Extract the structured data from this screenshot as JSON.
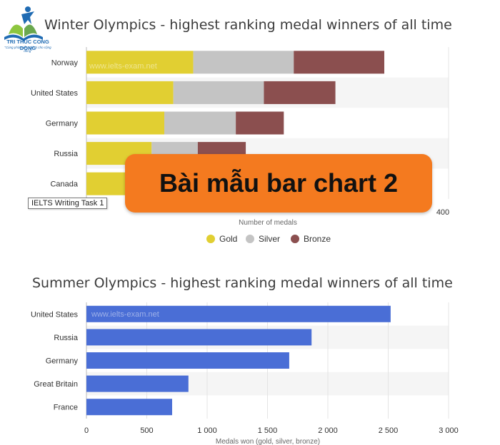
{
  "logo": {
    "name": "TRI THUC CONG DONG",
    "slogan": "\"Cùng phát triển, giá trị cho cộng đồng\""
  },
  "banner": {
    "text": "Bài mẫu bar chart 2"
  },
  "tooltip": {
    "text": "IELTS Writing Task 1"
  },
  "chart_data": [
    {
      "type": "bar",
      "orientation": "horizontal",
      "stacked": true,
      "title": "Winter Olympics - highest ranking medal winners of all time",
      "categories": [
        "Norway",
        "United States",
        "Germany",
        "Russia",
        "Canada"
      ],
      "series": [
        {
          "name": "Gold",
          "color": "#e1cf32",
          "values": [
            118,
            96,
            86,
            72,
            62
          ]
        },
        {
          "name": "Silver",
          "color": "#c4c4c4",
          "values": [
            111,
            100,
            79,
            51,
            55
          ]
        },
        {
          "name": "Bronze",
          "color": "#8b4f4f",
          "values": [
            100,
            79,
            53,
            53,
            53
          ]
        }
      ],
      "xlabel": "Number of medals",
      "xlim": [
        0,
        400
      ],
      "xticks_visible": [
        400
      ],
      "watermark": "www.ielts-exam.net",
      "legend": "bottom",
      "grid": true
    },
    {
      "type": "bar",
      "orientation": "horizontal",
      "title": "Summer Olympics - highest ranking medal winners of all time",
      "categories": [
        "United States",
        "Russia",
        "Germany",
        "Great Britain",
        "France"
      ],
      "series": [
        {
          "color": "#4a6ed6",
          "values": [
            2520,
            1865,
            1680,
            845,
            710
          ]
        }
      ],
      "xlabel": "Medals won (gold, silver, bronze)",
      "xlim": [
        0,
        3000
      ],
      "xticks": [
        0,
        500,
        1000,
        1500,
        2000,
        2500,
        3000
      ],
      "xtick_labels": [
        "0",
        "500",
        "1 000",
        "1 500",
        "2 000",
        "2 500",
        "3 000"
      ],
      "watermark": "www.ielts-exam.net",
      "grid": true
    }
  ]
}
